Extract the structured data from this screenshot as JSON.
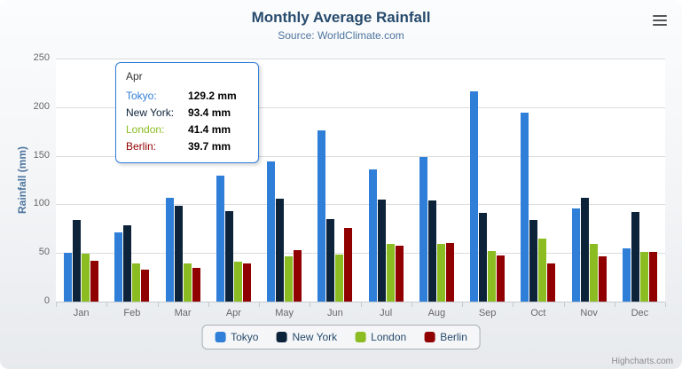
{
  "header": {
    "title": "Monthly Average Rainfall",
    "subtitle": "Source: WorldClimate.com"
  },
  "credits": "Highcharts.com",
  "export_menu": {
    "icon": "hamburger-icon"
  },
  "tooltip": {
    "category": "Apr",
    "rows": [
      {
        "name": "Tokyo",
        "value": "129.2 mm"
      },
      {
        "name": "New York",
        "value": "93.4 mm"
      },
      {
        "name": "London",
        "value": "41.4 mm"
      },
      {
        "name": "Berlin",
        "value": "39.7 mm"
      }
    ]
  },
  "chart_data": {
    "type": "bar",
    "title": "Monthly Average Rainfall",
    "subtitle": "Source: WorldClimate.com",
    "xlabel": "",
    "ylabel": "Rainfall (mm)",
    "ylim": [
      0,
      250
    ],
    "yticks": [
      0,
      50,
      100,
      150,
      200,
      250
    ],
    "grid": true,
    "legend_position": "bottom",
    "categories": [
      "Jan",
      "Feb",
      "Mar",
      "Apr",
      "May",
      "Jun",
      "Jul",
      "Aug",
      "Sep",
      "Oct",
      "Nov",
      "Dec"
    ],
    "series": [
      {
        "name": "Tokyo",
        "color": "#2f7ed8",
        "values": [
          49.9,
          71.5,
          106.4,
          129.2,
          144.0,
          176.0,
          135.6,
          148.5,
          216.4,
          194.1,
          95.6,
          54.4
        ]
      },
      {
        "name": "New York",
        "color": "#0d233a",
        "values": [
          83.6,
          78.8,
          98.5,
          93.4,
          106.0,
          84.5,
          105.0,
          104.3,
          91.2,
          83.5,
          106.6,
          92.3
        ]
      },
      {
        "name": "London",
        "color": "#8bbc21",
        "values": [
          48.9,
          38.8,
          39.3,
          41.4,
          47.0,
          48.3,
          59.0,
          59.6,
          52.4,
          65.2,
          59.3,
          51.2
        ]
      },
      {
        "name": "Berlin",
        "color": "#910000",
        "values": [
          42.4,
          33.2,
          34.5,
          39.7,
          52.6,
          75.5,
          57.4,
          60.4,
          47.6,
          39.1,
          46.8,
          51.1
        ]
      }
    ]
  }
}
